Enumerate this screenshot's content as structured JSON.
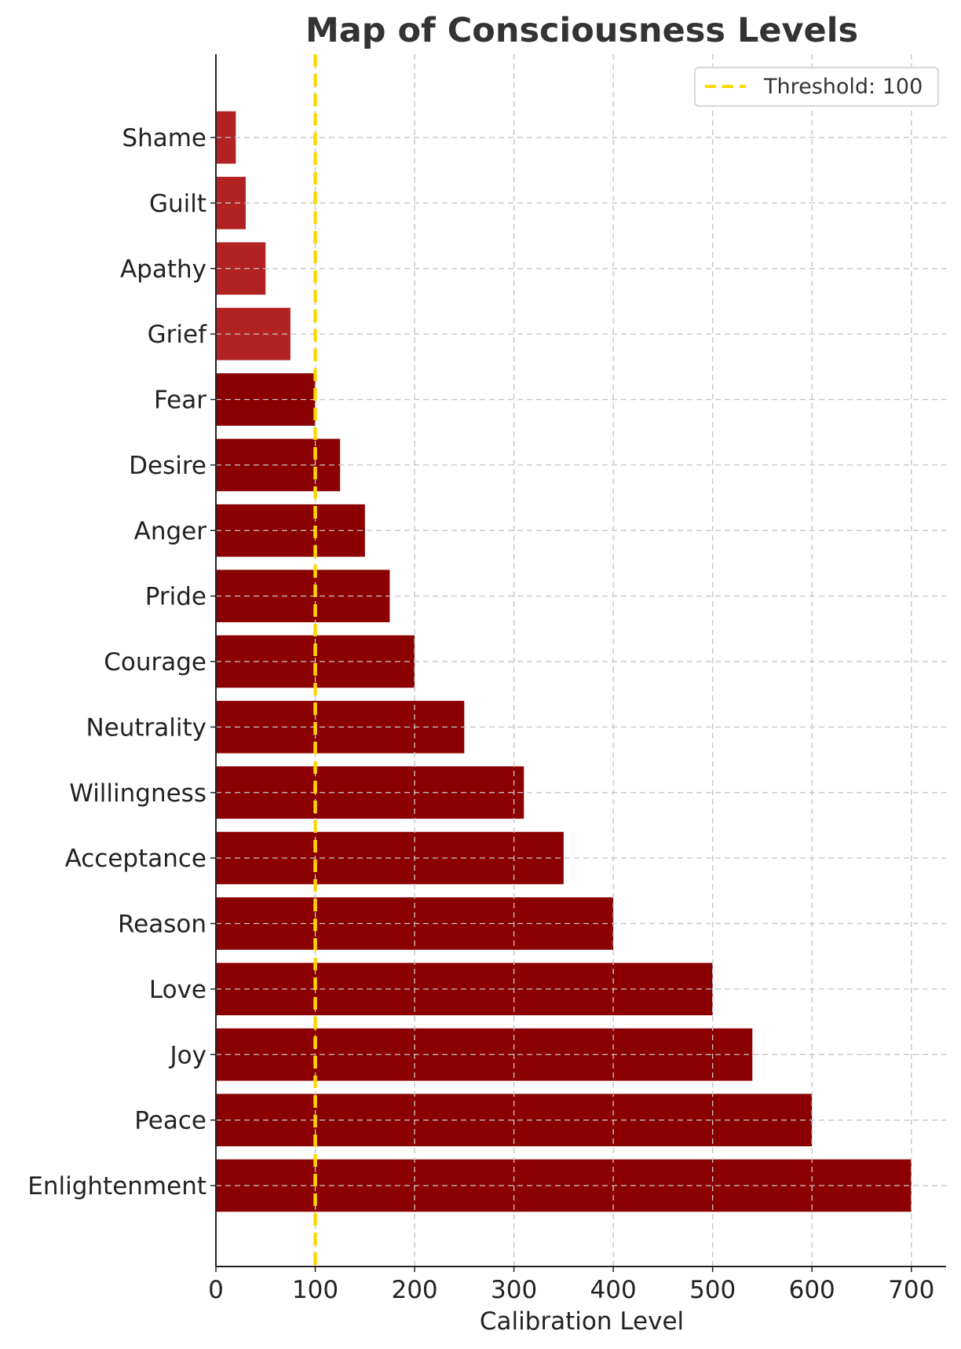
{
  "chart_data": {
    "type": "bar",
    "orientation": "horizontal",
    "title": "Map of Consciousness Levels",
    "xlabel": "Calibration Level",
    "ylabel": "",
    "xlim": [
      0,
      735
    ],
    "xticks": [
      0,
      100,
      200,
      300,
      400,
      500,
      600,
      700
    ],
    "categories": [
      "Shame",
      "Guilt",
      "Apathy",
      "Grief",
      "Fear",
      "Desire",
      "Anger",
      "Pride",
      "Courage",
      "Neutrality",
      "Willingness",
      "Acceptance",
      "Reason",
      "Love",
      "Joy",
      "Peace",
      "Enlightenment"
    ],
    "values": [
      20,
      30,
      50,
      75,
      100,
      125,
      150,
      175,
      200,
      250,
      310,
      350,
      400,
      500,
      540,
      600,
      700
    ],
    "grid": true,
    "threshold": {
      "value": 100,
      "label": "Threshold: 100",
      "color": "#FFD700",
      "style": "dashed"
    },
    "legend": {
      "position": "top-right",
      "entries": [
        "Threshold: 100"
      ]
    },
    "colors": {
      "below_threshold": "#B22222",
      "at_or_above_threshold": "#8B0000"
    }
  }
}
